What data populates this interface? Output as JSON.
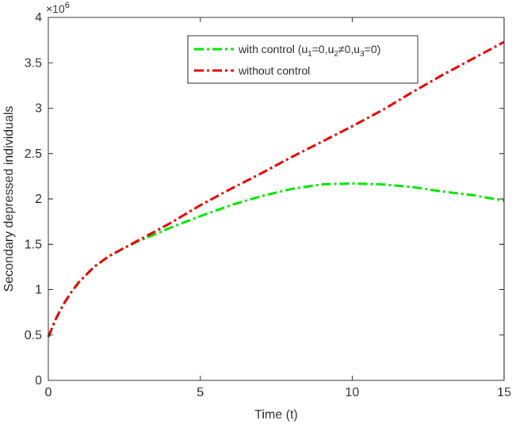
{
  "chart_data": {
    "type": "line",
    "title": "",
    "xlabel": "Time (t)",
    "ylabel": "Secondary depressed individuals",
    "xlim": [
      0,
      15
    ],
    "ylim": [
      0,
      4
    ],
    "y_exponent_label": {
      "base": "×10",
      "exp": "6"
    },
    "x_ticks": [
      0,
      5,
      10,
      15
    ],
    "x_tick_labels": [
      "0",
      "5",
      "10",
      "15"
    ],
    "y_ticks": [
      0,
      0.5,
      1,
      1.5,
      2,
      2.5,
      3,
      3.5,
      4
    ],
    "y_tick_labels": [
      "0",
      "0.5",
      "1",
      "1.5",
      "2",
      "2.5",
      "3",
      "3.5",
      "4"
    ],
    "grid": false,
    "legend_position": "top-right",
    "series": [
      {
        "key": "with_control",
        "name_parts": [
          {
            "t": "with control (u",
            "sub": false
          },
          {
            "t": "1",
            "sub": true
          },
          {
            "t": "=0,u",
            "sub": false
          },
          {
            "t": "2",
            "sub": true
          },
          {
            "t": "≠0,u",
            "sub": false
          },
          {
            "t": "3",
            "sub": true
          },
          {
            "t": "=0)",
            "sub": false
          }
        ],
        "color": "#00e600",
        "style": "dash-dot",
        "x": [
          0,
          0.25,
          0.5,
          0.75,
          1,
          1.5,
          2,
          2.5,
          3,
          3.5,
          4,
          5,
          6,
          7,
          8,
          9,
          10,
          11,
          12,
          13,
          14,
          15
        ],
        "y": [
          0.48,
          0.68,
          0.84,
          0.97,
          1.08,
          1.25,
          1.37,
          1.46,
          1.54,
          1.61,
          1.68,
          1.81,
          1.93,
          2.03,
          2.11,
          2.16,
          2.17,
          2.16,
          2.13,
          2.08,
          2.04,
          1.98
        ]
      },
      {
        "key": "without_control",
        "name": "without control",
        "color": "#e60000",
        "style": "dash-dot",
        "x": [
          0,
          0.25,
          0.5,
          0.75,
          1,
          1.5,
          2,
          2.5,
          3,
          3.5,
          4,
          5,
          6,
          7,
          8,
          9,
          10,
          11,
          12,
          13,
          14,
          15
        ],
        "y": [
          0.48,
          0.68,
          0.84,
          0.97,
          1.08,
          1.25,
          1.37,
          1.46,
          1.55,
          1.64,
          1.73,
          1.93,
          2.11,
          2.28,
          2.46,
          2.63,
          2.8,
          2.98,
          3.18,
          3.37,
          3.55,
          3.73
        ]
      }
    ]
  }
}
